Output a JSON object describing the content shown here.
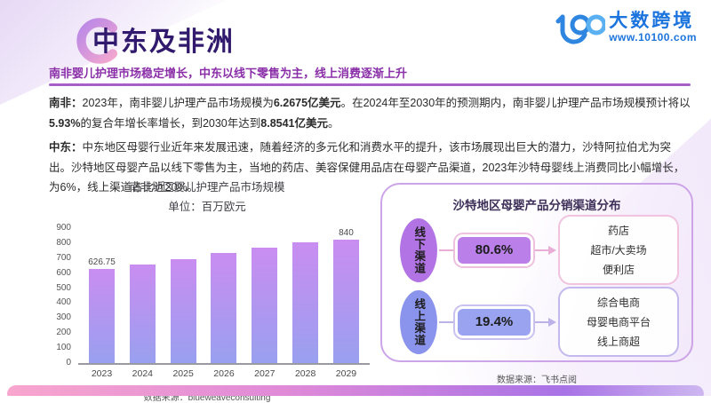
{
  "page": {
    "title": "中东及非洲",
    "subtitle": "南非婴儿护理市场稳定增长，中东以线下零售为主，线上消费逐渐上升"
  },
  "logo": {
    "name": "大数跨境",
    "url": "www.10100.com"
  },
  "summary": {
    "p1": {
      "label": "南非：",
      "s1": "2023年，南非婴儿护理产品市场规模为",
      "b1": "6.2675亿美元",
      "s2": "。在2024年至2030年的预测期内，南非婴儿护理产品市场规模预计将以",
      "b2": "5.93%",
      "s3": "的复合年增长率增长，到2030年达到",
      "b3": "8.8541亿美元",
      "s4": "。"
    },
    "p2": {
      "label": "中东：",
      "s1": "中东地区母婴行业近年来发展迅速，随着经济的多元化和消费水平的提升，该市场展现出巨大的潜力，沙特阿拉伯尤为突出。沙特地区母婴产品以线下零售为主，当地的药店、美容保健用品店在母婴产品渠道，2023年沙特母婴线上消费同比小幅增长，为6%，线上渠道占比近20%。"
    }
  },
  "chart_data": {
    "type": "bar",
    "title": "南非地区婴儿护理产品市场规模",
    "subtitle": "单位：百万欧元",
    "categories": [
      "2023",
      "2024",
      "2025",
      "2026",
      "2027",
      "2028",
      "2029"
    ],
    "values": [
      626.75,
      658,
      695,
      732,
      770,
      806,
      840
    ],
    "point_labels": [
      "626.75",
      "",
      "",
      "",
      "",
      "",
      "840"
    ],
    "yticks": [
      "900",
      "800",
      "700",
      "600",
      "500",
      "400",
      "300",
      "200",
      "100",
      "0"
    ],
    "ylim": [
      0,
      900
    ],
    "grid": "off",
    "bar_gradient_top": "#c98df1",
    "bar_gradient_bottom": "#99a0ef",
    "source_label": "数据来源：",
    "source": "blueweaveconsulting"
  },
  "diagram": {
    "title": "沙特地区母婴产品分销渠道分布",
    "rows": [
      {
        "channel": "线下渠道",
        "share": "80.6%",
        "outlets": [
          "药店",
          "超市/大卖场",
          "便利店"
        ]
      },
      {
        "channel": "线上渠道",
        "share": "19.4%",
        "outlets": [
          "综合电商",
          "母婴电商平台",
          "线上商超"
        ]
      }
    ],
    "source_label": "数据来源：",
    "source": "飞书点阅"
  },
  "colors": {
    "title_purple": "#311a6d",
    "subtitle_purple": "#8a2fa8",
    "rule_purple": "#a75fc8",
    "brand_blue": "#1b74dd",
    "offline_fill": "#b273e4",
    "online_fill": "#8b94ec",
    "panel_border": "#cda4e8",
    "footer_pink": "#f8a6ce",
    "footer_purple": "#a873e6"
  }
}
